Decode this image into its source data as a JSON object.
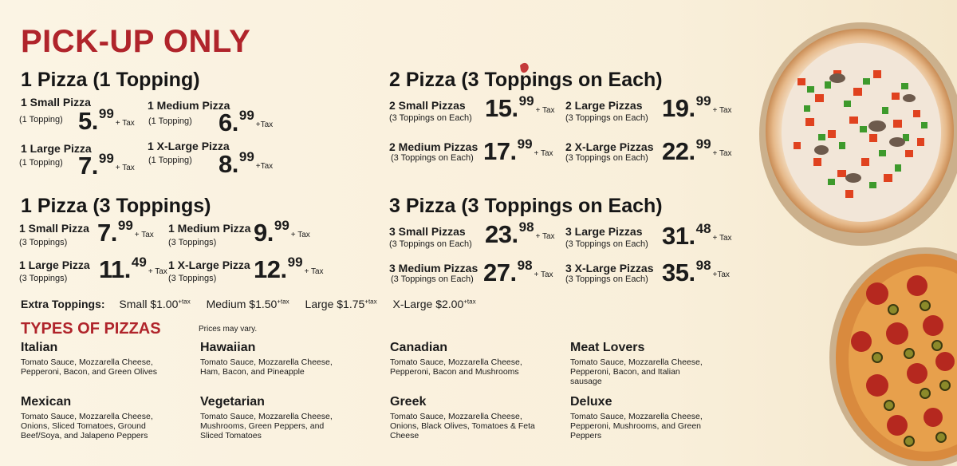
{
  "title": "PICK-UP ONLY",
  "one_pizza_one_topping": {
    "heading": "1 Pizza (1 Topping)",
    "items": [
      {
        "name": "1 Small Pizza",
        "sub": "(1 Topping)",
        "dollars": "5.",
        "cents": "99",
        "tax": "+ Tax"
      },
      {
        "name": "1 Medium Pizza",
        "sub": "(1 Topping)",
        "dollars": "6.",
        "cents": "99",
        "tax": "+Tax"
      },
      {
        "name": "1 Large Pizza",
        "sub": "(1 Topping)",
        "dollars": "7.",
        "cents": "99",
        "tax": "+ Tax"
      },
      {
        "name": "1 X-Large Pizza",
        "sub": "(1 Topping)",
        "dollars": "8.",
        "cents": "99",
        "tax": "+Tax"
      }
    ]
  },
  "one_pizza_three_toppings": {
    "heading": "1 Pizza (3 Toppings)",
    "items": [
      {
        "name": "1 Small Pizza",
        "sub": "(3 Toppings)",
        "dollars": "7.",
        "cents": "99",
        "tax": "+ Tax"
      },
      {
        "name": "1 Medium Pizza",
        "sub": "(3 Toppings)",
        "dollars": "9.",
        "cents": "99",
        "tax": "+ Tax"
      },
      {
        "name": "1 Large Pizza",
        "sub": "(3 Toppings)",
        "dollars": "11.",
        "cents": "49",
        "tax": "+ Tax"
      },
      {
        "name": "1 X-Large Pizza",
        "sub": "(3 Toppings)",
        "dollars": "12.",
        "cents": "99",
        "tax": "+ Tax"
      }
    ]
  },
  "two_pizza": {
    "heading": "2 Pizza (3 Toppings on Each)",
    "items": [
      {
        "name": "2 Small Pizzas",
        "sub": "(3 Toppings on Each)",
        "dollars": "15.",
        "cents": "99",
        "tax": "+ Tax"
      },
      {
        "name": "2 Large Pizzas",
        "sub": "(3 Toppings on Each)",
        "dollars": "19.",
        "cents": "99",
        "tax": "+ Tax"
      },
      {
        "name": "2 Medium Pizzas",
        "sub": "(3 Toppings on Each)",
        "dollars": "17.",
        "cents": "99",
        "tax": "+ Tax"
      },
      {
        "name": "2 X-Large Pizzas",
        "sub": "(3 Toppings on Each)",
        "dollars": "22.",
        "cents": "99",
        "tax": "+ Tax"
      }
    ]
  },
  "three_pizza": {
    "heading": "3 Pizza (3 Toppings on Each)",
    "items": [
      {
        "name": "3 Small Pizzas",
        "sub": "(3 Toppings on Each)",
        "dollars": "23.",
        "cents": "98",
        "tax": "+ Tax"
      },
      {
        "name": "3 Large Pizzas",
        "sub": "(3 Toppings on Each)",
        "dollars": "31.",
        "cents": "48",
        "tax": "+ Tax"
      },
      {
        "name": "3 Medium Pizzas",
        "sub": "(3 Toppings on Each)",
        "dollars": "27.",
        "cents": "98",
        "tax": "+ Tax"
      },
      {
        "name": "3 X-Large Pizzas",
        "sub": "(3 Toppings on Each)",
        "dollars": "35.",
        "cents": "98",
        "tax": "+Tax"
      }
    ]
  },
  "extra_toppings": {
    "label": "Extra Toppings:",
    "options": [
      {
        "size": "Small $1.00",
        "tax": "+tax"
      },
      {
        "size": "Medium $1.50",
        "tax": "+tax"
      },
      {
        "size": "Large $1.75",
        "tax": "+tax"
      },
      {
        "size": "X-Large $2.00",
        "tax": "+tax"
      }
    ]
  },
  "types": {
    "heading": "TYPES OF PIZZAS",
    "note": "Prices may vary.",
    "pizzas": [
      {
        "name": "Italian",
        "desc": "Tomato Sauce, Mozzarella Cheese, Pepperoni, Bacon, and Green Olives"
      },
      {
        "name": "Hawaiian",
        "desc": "Tomato Sauce, Mozzarella Cheese, Ham, Bacon, and Pineapple"
      },
      {
        "name": "Canadian",
        "desc": "Tomato Sauce, Mozzarella Cheese, Pepperoni, Bacon and Mushrooms"
      },
      {
        "name": "Meat Lovers",
        "desc": "Tomato Sauce, Mozzarella Cheese, Pepperoni, Bacon, and Italian sausage"
      },
      {
        "name": "Mexican",
        "desc": "Tomato Sauce, Mozzarella Cheese, Onions, Sliced Tomatoes, Ground Beef/Soya, and Jalapeno Peppers"
      },
      {
        "name": "Vegetarian",
        "desc": "Tomato Sauce, Mozzarella Cheese, Mushrooms, Green Peppers, and Sliced Tomatoes"
      },
      {
        "name": "Greek",
        "desc": "Tomato Sauce, Mozzarella Cheese, Onions, Black Olives, Tomatoes & Feta Cheese"
      },
      {
        "name": "Deluxe",
        "desc": "Tomato Sauce, Mozzarella Cheese, Pepperoni, Mushrooms, and Green Peppers"
      }
    ]
  },
  "colors": {
    "title_red": "#b0242b",
    "background": "#fbf3e2",
    "text": "#1b1b1b"
  }
}
